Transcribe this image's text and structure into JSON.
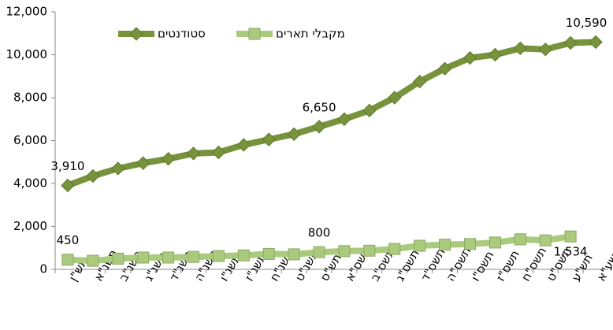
{
  "chart_data": {
    "type": "line",
    "categories": [
      "תש\"ן",
      "תשנ\"א",
      "תשנ\"ב",
      "תשנ\"ג",
      "תשנ\"ד",
      "תשנ\"ה",
      "תשנ\"ו",
      "תשנ\"ז",
      "תשנ\"ח",
      "תשנ\"ט",
      "תש\"ס",
      "תשס\"א",
      "תשס\"ב",
      "תשס\"ג",
      "תשס\"ד",
      "תשס\"ה",
      "תשס\"ו",
      "תשס\"ז",
      "תשס\"ח",
      "תשס\"ט",
      "תש\"ע",
      "תשע\"א"
    ],
    "series": [
      {
        "name": "סטודנטים",
        "color": "#77933c",
        "marker": "diamond",
        "values": [
          3910,
          4350,
          4700,
          4950,
          5150,
          5400,
          5450,
          5800,
          6050,
          6300,
          6650,
          7000,
          7400,
          8000,
          8750,
          9350,
          9850,
          10000,
          10300,
          10250,
          10550,
          10590
        ],
        "value_labels": [
          "3,910",
          null,
          null,
          null,
          null,
          null,
          null,
          null,
          null,
          null,
          "6,650",
          null,
          null,
          null,
          null,
          null,
          null,
          null,
          null,
          null,
          null,
          "10,590"
        ]
      },
      {
        "name": "מקבלי תארים",
        "color": "#aacb7e",
        "marker": "square",
        "values": [
          450,
          400,
          500,
          550,
          550,
          580,
          620,
          650,
          720,
          700,
          800,
          850,
          870,
          950,
          1100,
          1150,
          1180,
          1250,
          1400,
          1350,
          1534,
          null
        ],
        "value_labels": [
          "450",
          null,
          null,
          null,
          null,
          null,
          null,
          null,
          null,
          null,
          "800",
          null,
          null,
          null,
          null,
          null,
          null,
          null,
          null,
          null,
          "1,534",
          null
        ]
      }
    ],
    "ylim": [
      0,
      12000
    ],
    "yticks": [
      0,
      {
        "value": 2000,
        "label": "2,000"
      },
      {
        "value": 4000,
        "label": "4,000"
      },
      {
        "value": 6000,
        "label": "6,000"
      },
      {
        "value": 8000,
        "label": "8,000"
      },
      {
        "value": 10000,
        "label": "10,000"
      },
      {
        "value": 12000,
        "label": "12,000"
      }
    ],
    "grid": false,
    "legend": "top"
  }
}
